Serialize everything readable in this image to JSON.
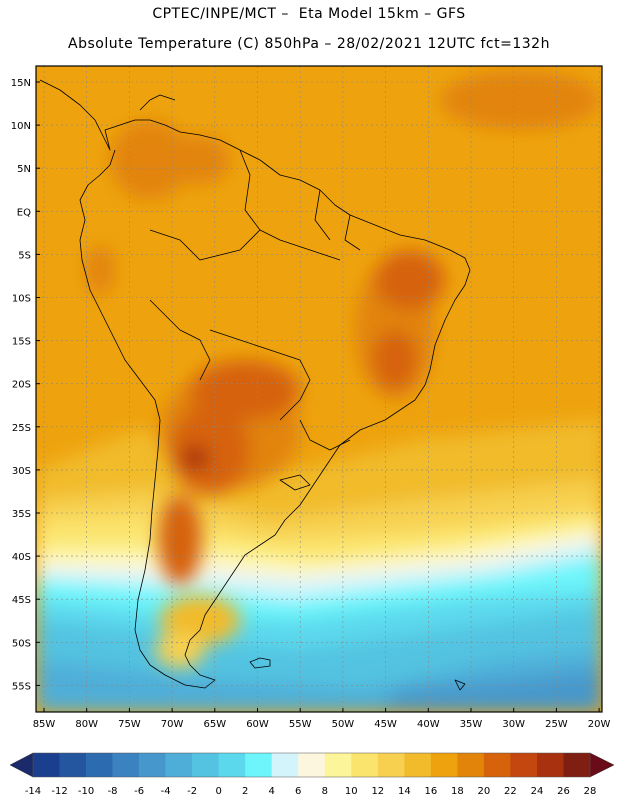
{
  "header": {
    "line1": "CPTEC/INPE/MCT –  Eta Model 15km – GFS",
    "line2": "Absolute Temperature (C) 850hPa – 28/02/2021 12UTC fct=132h"
  },
  "axes": {
    "lat_labels": [
      "15N",
      "10N",
      "5N",
      "EQ",
      "5S",
      "10S",
      "15S",
      "20S",
      "25S",
      "30S",
      "35S",
      "40S",
      "45S",
      "50S",
      "55S"
    ],
    "lon_labels": [
      "85W",
      "80W",
      "75W",
      "70W",
      "65W",
      "60W",
      "55W",
      "50W",
      "45W",
      "40W",
      "35W",
      "30W",
      "25W",
      "20W"
    ]
  },
  "colorbar": {
    "ticks": [
      "-14",
      "-12",
      "-10",
      "-8",
      "-6",
      "-4",
      "-2",
      "0",
      "2",
      "4",
      "6",
      "8",
      "10",
      "12",
      "14",
      "16",
      "18",
      "20",
      "22",
      "24",
      "26",
      "28"
    ],
    "colors": [
      "#1b3f8f",
      "#24559f",
      "#2d6bb0",
      "#3a82c0",
      "#4698cc",
      "#4faed8",
      "#53c3e1",
      "#5cd8ec",
      "#6df5fb",
      "#d4f4fb",
      "#fdf6df",
      "#fdf59a",
      "#fbe46d",
      "#f7d050",
      "#f1bb2c",
      "#eea30e",
      "#e2840a",
      "#d6620c",
      "#c3470f",
      "#a8320f",
      "#7e1f12"
    ],
    "low_arrow": "#1b2a6b",
    "high_arrow": "#6a0b1a"
  }
}
